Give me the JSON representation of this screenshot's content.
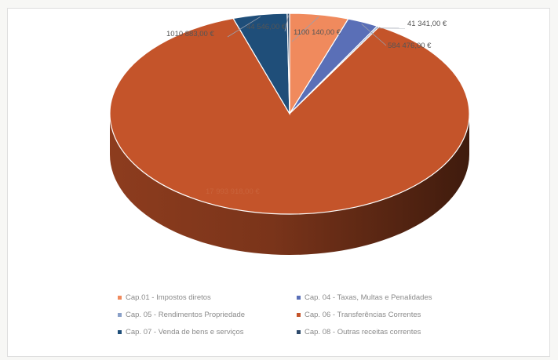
{
  "chart_data": {
    "type": "pie",
    "title": "",
    "series": [
      {
        "name": "Cap.01 - Impostos diretos",
        "value": 1100140.0,
        "label": "1100 140,00 €",
        "color": "#f08a5d"
      },
      {
        "name": "Cap. 04 - Taxas, Multas e Penalidades",
        "value": 584476.0,
        "label": "584 476,00 €",
        "color": "#5a6fb7"
      },
      {
        "name": "Cap. 05 - Rendimentos Propriedade",
        "value": 41341.0,
        "label": "41 341,00 €",
        "color": "#8aa0c8"
      },
      {
        "name": "Cap. 06 - Transferências Correntes",
        "value": 17993918.0,
        "label": "17 993 918,00 €",
        "color": "#c4542a"
      },
      {
        "name": "Cap. 07 - Venda de bens e serviços",
        "value": 1010883.0,
        "label": "1010 883,00 €",
        "color": "#1f4e79"
      },
      {
        "name": "Cap. 08 - Outras receitas correntes",
        "value": 44546.0,
        "label": "44 546,00 €",
        "color": "#2d4a6b"
      }
    ],
    "legend_placement": "bottom"
  },
  "legend_order": [
    0,
    1,
    2,
    3,
    4,
    5
  ]
}
